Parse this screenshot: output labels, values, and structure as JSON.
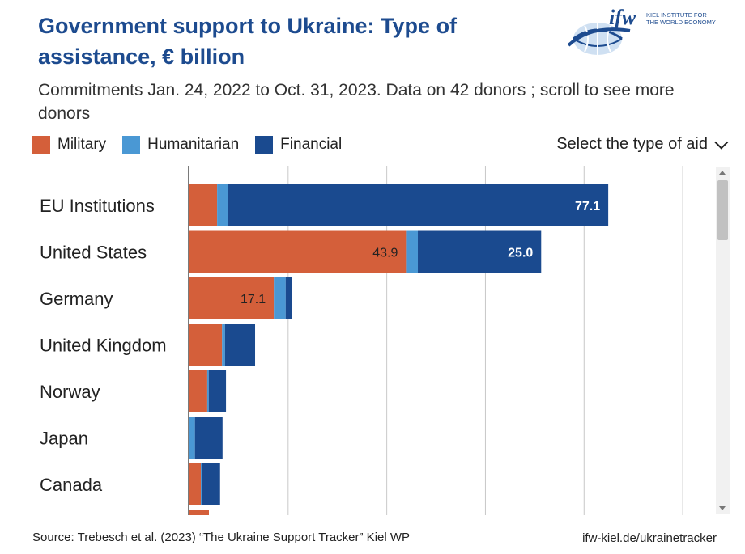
{
  "header": {
    "title": "Government support to Ukraine:  Type of assistance, € billion",
    "subtitle": "Commitments Jan. 24, 2022 to Oct. 31, 2023. Data on 42 donors ; scroll to see more donors"
  },
  "logo": {
    "text": "ifw",
    "line1": "KIEL INSTITUTE FOR",
    "line2": "THE WORLD ECONOMY"
  },
  "legend": [
    {
      "label": "Military",
      "color": "#d45f3a"
    },
    {
      "label": "Humanitarian",
      "color": "#4a98d4"
    },
    {
      "label": "Financial",
      "color": "#1a4a8f"
    }
  ],
  "controls": {
    "aid_selector_label": "Select the type of aid"
  },
  "footer": {
    "source": "Source: Trebesch et al. (2023) “The Ukraine Support Tracker” Kiel WP",
    "url": "ifw-kiel.de/ukrainetracker"
  },
  "chart_data": {
    "type": "bar",
    "orientation": "horizontal",
    "stacked": true,
    "categories": [
      "EU Institutions",
      "United States",
      "Germany",
      "United Kingdom",
      "Norway",
      "Japan",
      "Canada"
    ],
    "series": [
      {
        "name": "Military",
        "color": "#d45f3a",
        "values": [
          5.6,
          43.9,
          17.1,
          6.6,
          3.6,
          0.0,
          2.3
        ]
      },
      {
        "name": "Humanitarian",
        "color": "#4a98d4",
        "values": [
          2.2,
          2.4,
          2.4,
          0.6,
          0.3,
          1.1,
          0.3
        ]
      },
      {
        "name": "Financial",
        "color": "#1a4a8f",
        "values": [
          77.1,
          25.0,
          1.3,
          6.1,
          3.5,
          5.6,
          3.6
        ]
      }
    ],
    "data_labels": [
      {
        "category": "EU Institutions",
        "series": "Financial",
        "text": "77.1"
      },
      {
        "category": "United States",
        "series": "Military",
        "text": "43.9"
      },
      {
        "category": "United States",
        "series": "Financial",
        "text": "25.0"
      },
      {
        "category": "Germany",
        "series": "Military",
        "text": "17.1"
      }
    ],
    "xlim": [
      0,
      110
    ],
    "gridlines": [
      20,
      40,
      60,
      80,
      100
    ],
    "grid": true,
    "legend_position": "top-left"
  }
}
